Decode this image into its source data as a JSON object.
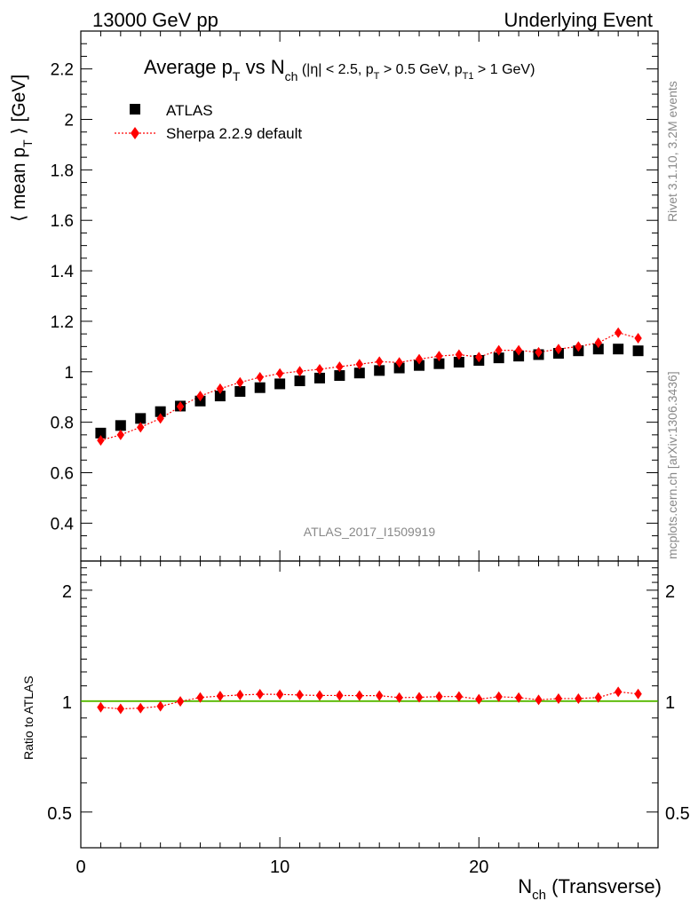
{
  "header": {
    "left": "13000 GeV pp",
    "right": "Underlying Event"
  },
  "title": {
    "main_a": "Average p",
    "main_a_sub": "T",
    "main_b": " vs N",
    "main_b_sub": "ch",
    "cuts_a": " (|η| < 2.5, p",
    "cuts_a_sub": "T",
    "cuts_b": " > 0.5 GeV, p",
    "cuts_b_sub": "T1",
    "cuts_c": " > 1 GeV)"
  },
  "ylabel_main": {
    "a": "⟨ mean p",
    "sub": "T",
    "b": " ⟩ [GeV]"
  },
  "ylabel_ratio": "Ratio to ATLAS",
  "xlabel": {
    "a": "N",
    "sub": "ch",
    "b": " (Transverse)"
  },
  "watermark": "ATLAS_2017_I1509919",
  "side_text_top": "Rivet 3.1.10,  3.2M events",
  "side_text_bottom": "mcplots.cern.ch [arXiv:1306.3436]",
  "legend": [
    {
      "name": "ATLAS",
      "marker": "square",
      "color": "#000000"
    },
    {
      "name": "Sherpa 2.2.9 default",
      "marker": "diamond",
      "color": "#ff0000"
    }
  ],
  "chart_data": [
    {
      "type": "scatter",
      "panel": "main",
      "xlim": [
        0,
        29
      ],
      "ylim": [
        0.25,
        2.35
      ],
      "yticks": [
        0.4,
        0.6,
        0.8,
        1,
        1.2,
        1.4,
        1.6,
        1.8,
        2,
        2.2
      ],
      "ytick_labels": [
        "0.4",
        "0.6",
        "0.8",
        "1",
        "1.2",
        "1.4",
        "1.6",
        "1.8",
        "2",
        "2.2"
      ],
      "x": [
        1,
        2,
        3,
        4,
        5,
        6,
        7,
        8,
        9,
        10,
        11,
        12,
        13,
        14,
        15,
        16,
        17,
        18,
        19,
        20,
        21,
        22,
        23,
        24,
        25,
        26,
        27,
        28
      ],
      "series": [
        {
          "name": "ATLAS",
          "values": [
            0.757,
            0.787,
            0.815,
            0.842,
            0.864,
            0.884,
            0.904,
            0.922,
            0.937,
            0.952,
            0.964,
            0.975,
            0.985,
            0.995,
            1.005,
            1.015,
            1.025,
            1.032,
            1.038,
            1.045,
            1.055,
            1.062,
            1.068,
            1.073,
            1.083,
            1.09,
            1.09,
            1.083
          ]
        },
        {
          "name": "Sherpa 2.2.9 default",
          "values": [
            0.728,
            0.75,
            0.78,
            0.815,
            0.862,
            0.904,
            0.933,
            0.958,
            0.978,
            0.993,
            1.002,
            1.01,
            1.02,
            1.03,
            1.04,
            1.037,
            1.05,
            1.062,
            1.068,
            1.058,
            1.085,
            1.085,
            1.077,
            1.09,
            1.1,
            1.115,
            1.155,
            1.133
          ]
        }
      ]
    },
    {
      "type": "scatter",
      "panel": "ratio",
      "xlim": [
        0,
        29
      ],
      "ylim": [
        0.4,
        2.4
      ],
      "yscale": "log",
      "yticks": [
        0.5,
        1,
        2
      ],
      "ytick_labels": [
        "0.5",
        "1",
        "2"
      ],
      "xticks": [
        0,
        10,
        20
      ],
      "xtick_labels": [
        "0",
        "10",
        "20"
      ],
      "x": [
        1,
        2,
        3,
        4,
        5,
        6,
        7,
        8,
        9,
        10,
        11,
        12,
        13,
        14,
        15,
        16,
        17,
        18,
        19,
        20,
        21,
        22,
        23,
        24,
        25,
        26,
        27,
        28
      ],
      "reference_line": 1,
      "series": [
        {
          "name": "Sherpa 2.2.9 default",
          "values": [
            0.962,
            0.953,
            0.957,
            0.968,
            0.998,
            1.023,
            1.032,
            1.039,
            1.044,
            1.043,
            1.039,
            1.036,
            1.036,
            1.035,
            1.035,
            1.022,
            1.024,
            1.029,
            1.029,
            1.012,
            1.028,
            1.022,
            1.008,
            1.016,
            1.016,
            1.023,
            1.06,
            1.046
          ]
        }
      ]
    }
  ]
}
